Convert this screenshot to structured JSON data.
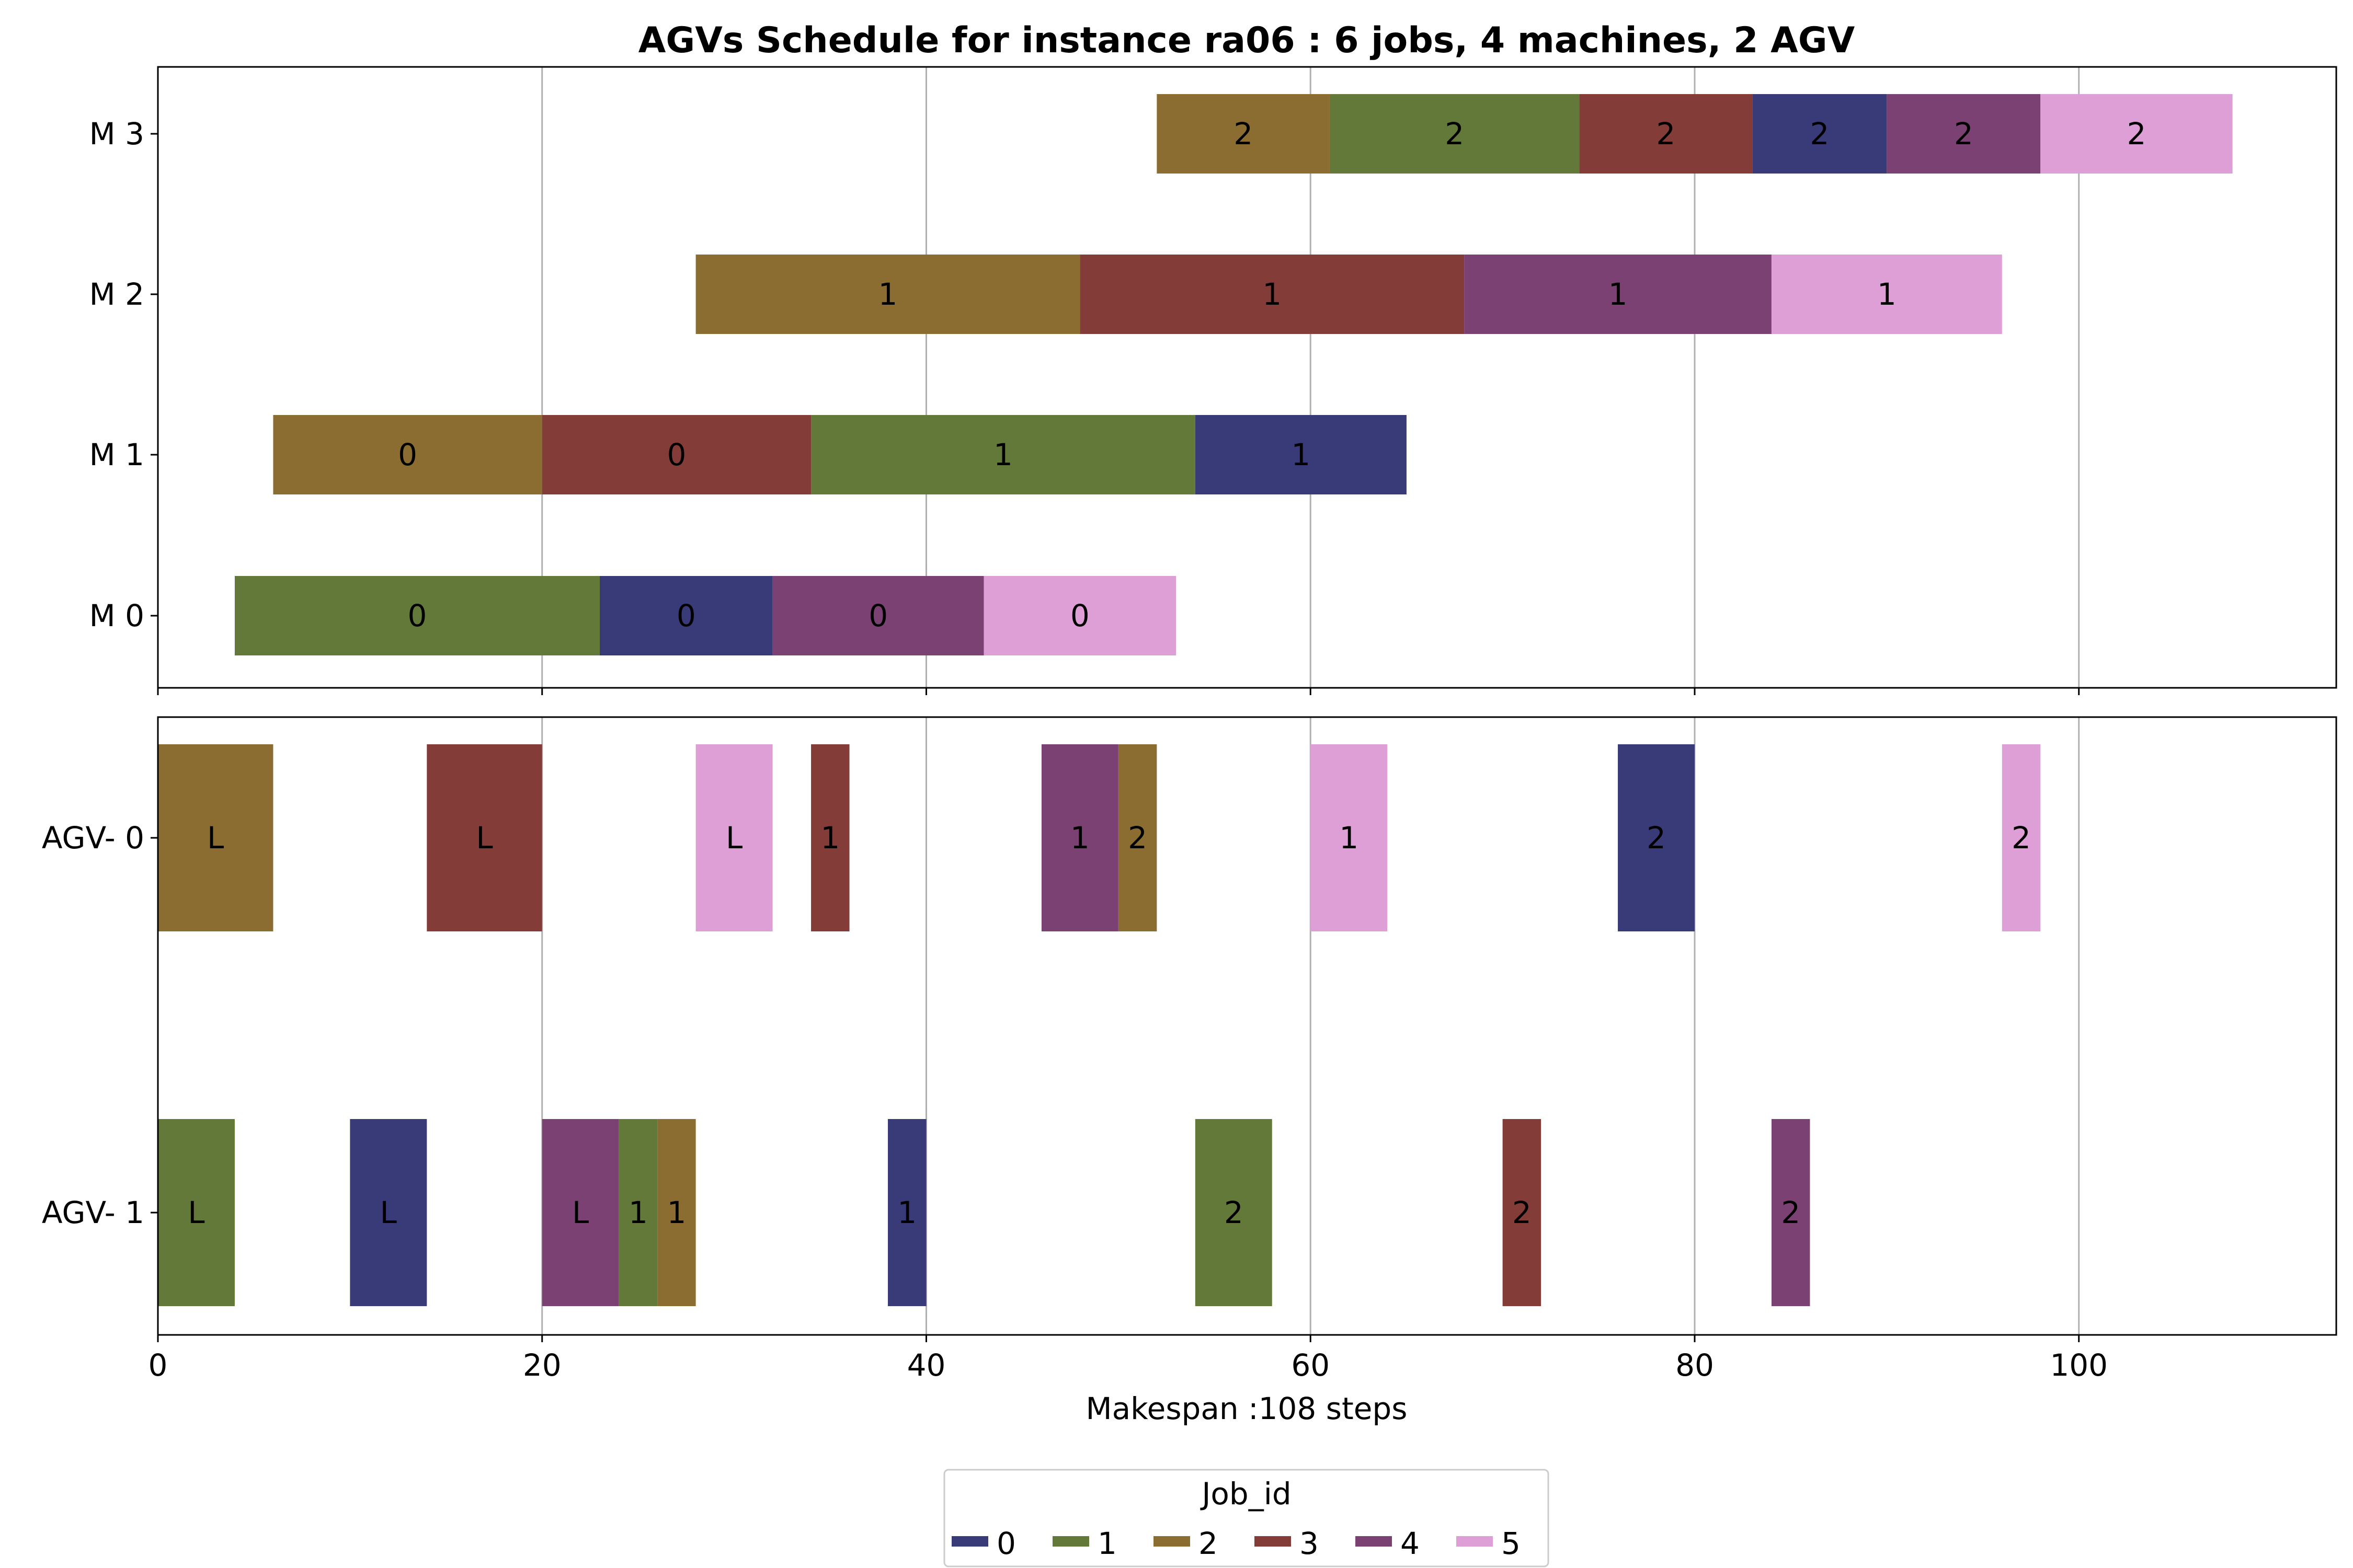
{
  "chart_data": {
    "type": "gantt",
    "title": "AGVs Schedule for instance ra06  : 6 jobs, 4 machines, 2 AGV",
    "xlabel": "Makespan :108 steps",
    "xlim": [
      0,
      113.4
    ],
    "xticks": [
      0,
      20,
      40,
      60,
      80,
      100
    ],
    "grid": "vertical",
    "job_colors": {
      "0": "#393b79",
      "1": "#637939",
      "2": "#8c6d31",
      "3": "#843c39",
      "4": "#7b4173",
      "5": "#de9ed6"
    },
    "legend": {
      "title": "Job_id",
      "placement": "below-center",
      "entries": [
        "0",
        "1",
        "2",
        "3",
        "4",
        "5"
      ]
    },
    "machine_panel": {
      "rows": [
        "M 0",
        "M 1",
        "M 2",
        "M 3"
      ],
      "tasks": [
        {
          "row": "M 0",
          "job": 1,
          "start": 4,
          "end": 23,
          "label": "0"
        },
        {
          "row": "M 0",
          "job": 0,
          "start": 23,
          "end": 32,
          "label": "0"
        },
        {
          "row": "M 0",
          "job": 4,
          "start": 32,
          "end": 43,
          "label": "0"
        },
        {
          "row": "M 0",
          "job": 5,
          "start": 43,
          "end": 53,
          "label": "0"
        },
        {
          "row": "M 1",
          "job": 2,
          "start": 6,
          "end": 20,
          "label": "0"
        },
        {
          "row": "M 1",
          "job": 3,
          "start": 20,
          "end": 34,
          "label": "0"
        },
        {
          "row": "M 1",
          "job": 1,
          "start": 34,
          "end": 54,
          "label": "1"
        },
        {
          "row": "M 1",
          "job": 0,
          "start": 54,
          "end": 65,
          "label": "1"
        },
        {
          "row": "M 2",
          "job": 2,
          "start": 28,
          "end": 48,
          "label": "1"
        },
        {
          "row": "M 2",
          "job": 3,
          "start": 48,
          "end": 68,
          "label": "1"
        },
        {
          "row": "M 2",
          "job": 4,
          "start": 68,
          "end": 84,
          "label": "1"
        },
        {
          "row": "M 2",
          "job": 5,
          "start": 84,
          "end": 96,
          "label": "1"
        },
        {
          "row": "M 3",
          "job": 2,
          "start": 52,
          "end": 61,
          "label": "2"
        },
        {
          "row": "M 3",
          "job": 1,
          "start": 61,
          "end": 74,
          "label": "2"
        },
        {
          "row": "M 3",
          "job": 3,
          "start": 74,
          "end": 83,
          "label": "2"
        },
        {
          "row": "M 3",
          "job": 0,
          "start": 83,
          "end": 90,
          "label": "2"
        },
        {
          "row": "M 3",
          "job": 4,
          "start": 90,
          "end": 98,
          "label": "2"
        },
        {
          "row": "M 3",
          "job": 5,
          "start": 98,
          "end": 108,
          "label": "2"
        }
      ]
    },
    "agv_panel": {
      "rows": [
        "AGV- 0",
        "AGV- 1"
      ],
      "tasks": [
        {
          "row": "AGV- 0",
          "job": 2,
          "start": 0,
          "end": 6,
          "label": "L"
        },
        {
          "row": "AGV- 0",
          "job": 3,
          "start": 14,
          "end": 20,
          "label": "L"
        },
        {
          "row": "AGV- 0",
          "job": 5,
          "start": 28,
          "end": 32,
          "label": "L"
        },
        {
          "row": "AGV- 0",
          "job": 3,
          "start": 34,
          "end": 36,
          "label": "1"
        },
        {
          "row": "AGV- 0",
          "job": 4,
          "start": 46,
          "end": 50,
          "label": "1"
        },
        {
          "row": "AGV- 0",
          "job": 2,
          "start": 50,
          "end": 52,
          "label": "2"
        },
        {
          "row": "AGV- 0",
          "job": 5,
          "start": 60,
          "end": 64,
          "label": "1"
        },
        {
          "row": "AGV- 0",
          "job": 0,
          "start": 76,
          "end": 80,
          "label": "2"
        },
        {
          "row": "AGV- 0",
          "job": 5,
          "start": 96,
          "end": 98,
          "label": "2"
        },
        {
          "row": "AGV- 1",
          "job": 1,
          "start": 0,
          "end": 4,
          "label": "L"
        },
        {
          "row": "AGV- 1",
          "job": 0,
          "start": 10,
          "end": 14,
          "label": "L"
        },
        {
          "row": "AGV- 1",
          "job": 4,
          "start": 20,
          "end": 24,
          "label": "L"
        },
        {
          "row": "AGV- 1",
          "job": 1,
          "start": 24,
          "end": 26,
          "label": "1"
        },
        {
          "row": "AGV- 1",
          "job": 2,
          "start": 26,
          "end": 28,
          "label": "1"
        },
        {
          "row": "AGV- 1",
          "job": 0,
          "start": 38,
          "end": 40,
          "label": "1"
        },
        {
          "row": "AGV- 1",
          "job": 1,
          "start": 54,
          "end": 58,
          "label": "2"
        },
        {
          "row": "AGV- 1",
          "job": 3,
          "start": 70,
          "end": 72,
          "label": "2"
        },
        {
          "row": "AGV- 1",
          "job": 4,
          "start": 84,
          "end": 86,
          "label": "2"
        }
      ]
    }
  }
}
